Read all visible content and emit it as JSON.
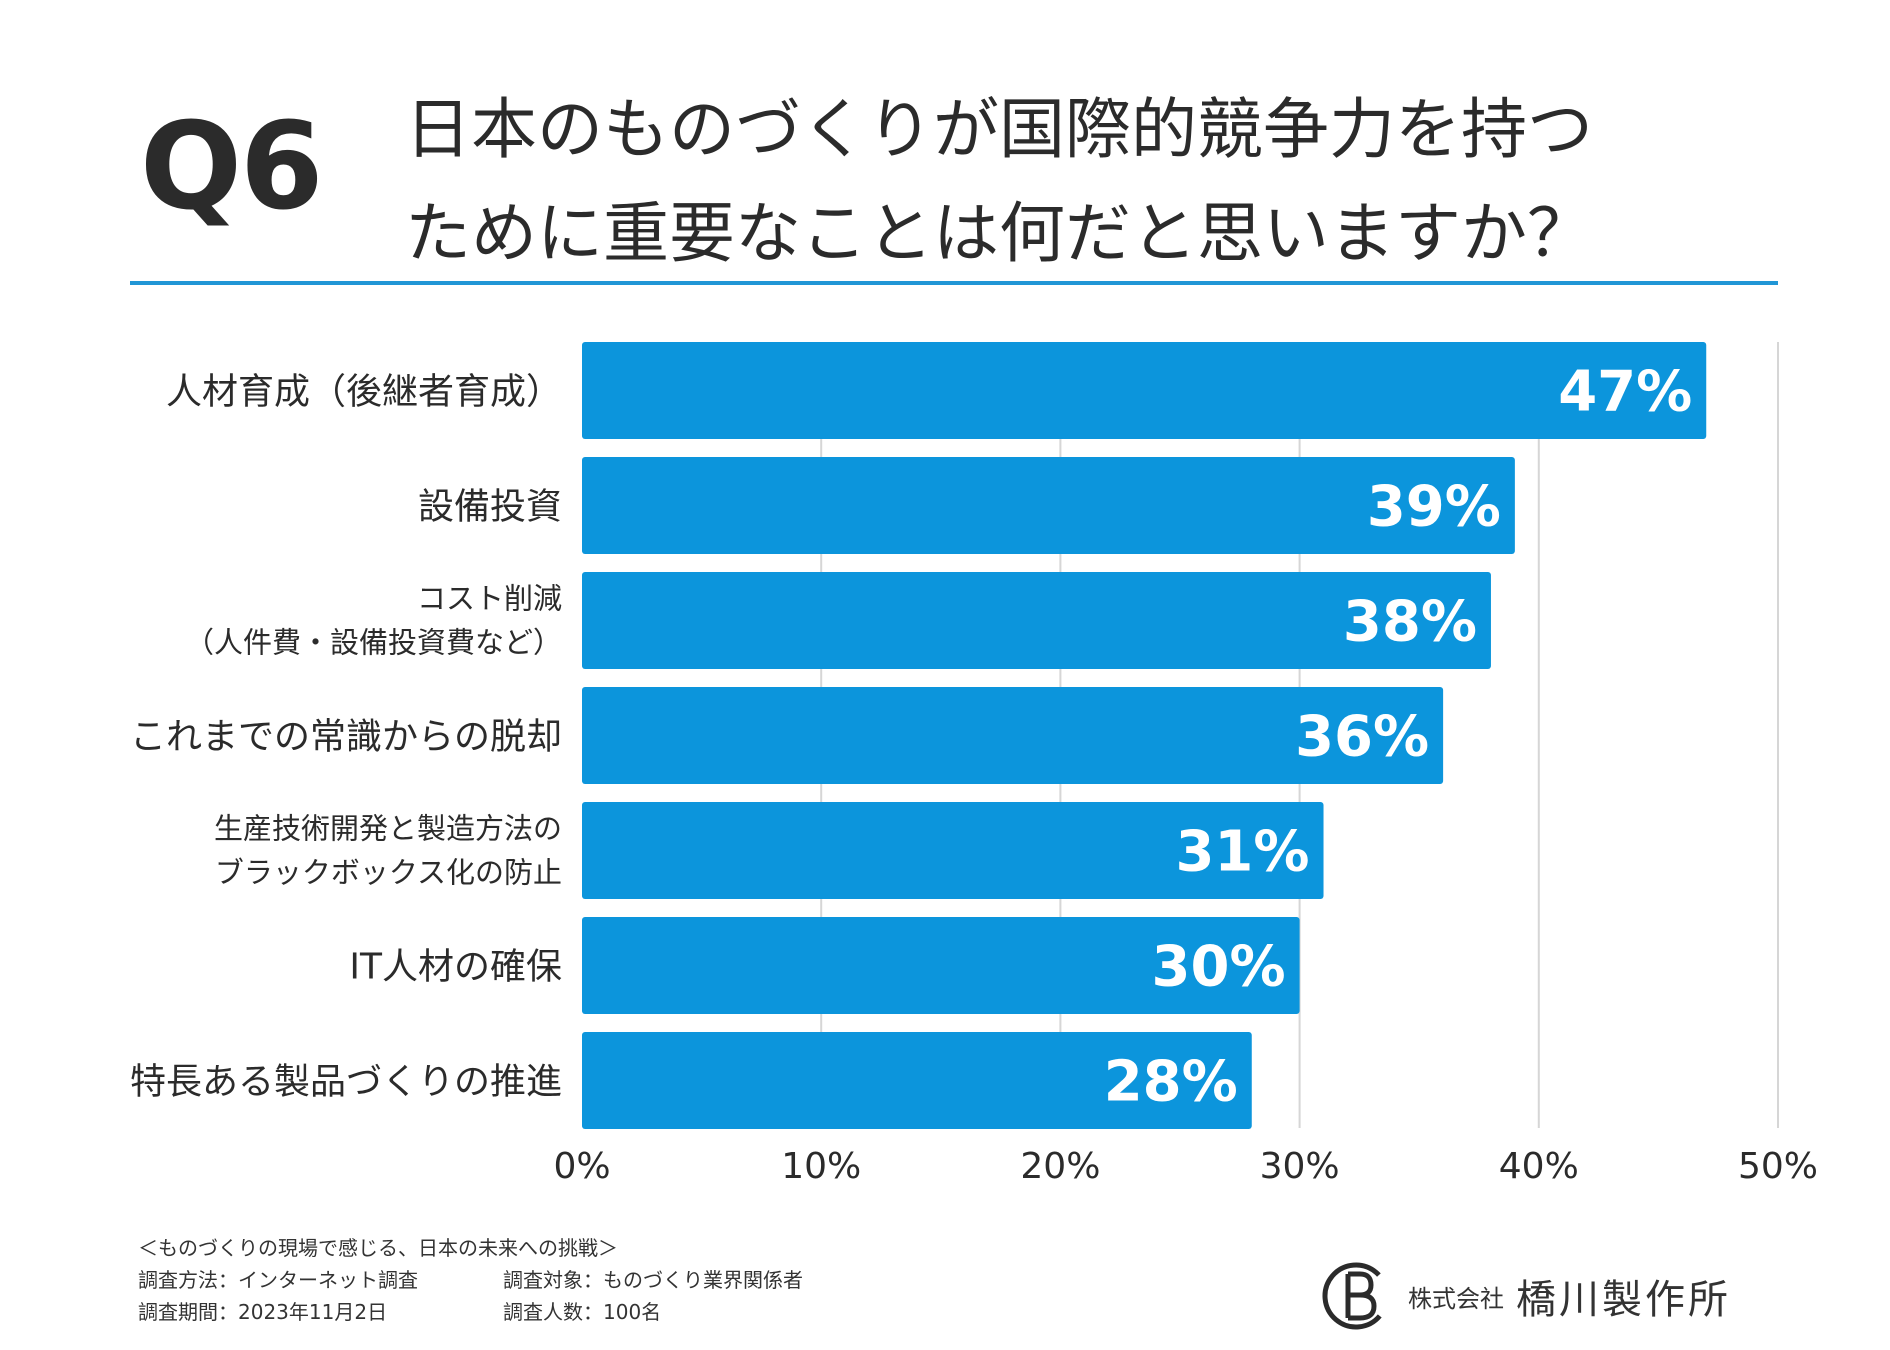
{
  "question": {
    "number": "Q6",
    "line1": "日本のものづくりが国際的競争力を持つ",
    "line2": "ために重要なことは何だと思いますか？"
  },
  "colors": {
    "bar": "#0c95dc",
    "rule": "#2196d6",
    "grid": "#d6d6d6",
    "label_text": "#2b2b2b",
    "value_text": "#ffffff"
  },
  "chart_data": {
    "type": "bar",
    "orientation": "horizontal",
    "title": "",
    "xlabel": "",
    "ylabel": "",
    "xlim": [
      0,
      50
    ],
    "ticks": [
      0,
      10,
      20,
      30,
      40,
      50
    ],
    "tick_labels": [
      "0%",
      "10%",
      "20%",
      "30%",
      "40%",
      "50%"
    ],
    "grid": true,
    "categories": [
      [
        "人材育成（後継者育成）"
      ],
      [
        "設備投資"
      ],
      [
        "コスト削減",
        "（人件費・設備投資費など）"
      ],
      [
        "これまでの常識からの脱却"
      ],
      [
        "生産技術開発と製造方法の",
        "ブラックボックス化の防止"
      ],
      [
        "IT人材の確保"
      ],
      [
        "特長ある製品づくりの推進"
      ]
    ],
    "values": [
      47,
      39,
      38,
      36,
      31,
      30,
      28
    ],
    "value_labels": [
      "47%",
      "39%",
      "38%",
      "36%",
      "31%",
      "30%",
      "28%"
    ]
  },
  "footer": {
    "survey_title": "＜ものづくりの現場で感じる、日本の未来への挑戦＞",
    "method": "調査方法：インターネット調査",
    "target": "調査対象：ものづくり業界関係者",
    "period": "調査期間：2023年11月2日",
    "count": "調査人数：100名"
  },
  "brand": {
    "prefix": "株式会社",
    "name": "橋川製作所"
  }
}
